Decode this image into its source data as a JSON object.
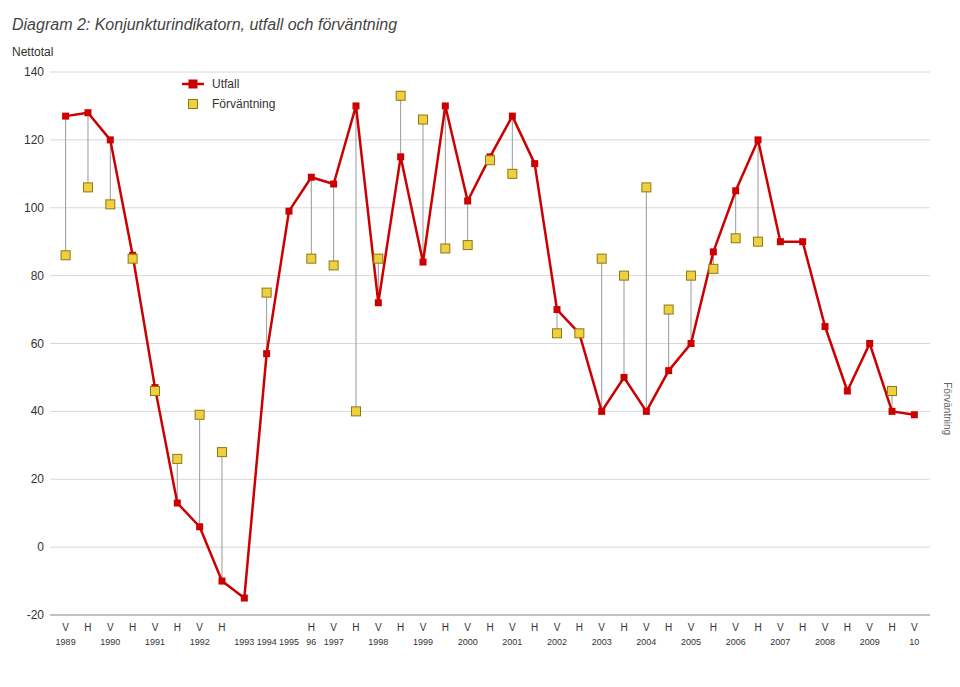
{
  "chart_data": {
    "type": "line",
    "title": "Diagram 2: Konjunkturindikatorn, utfall och förväntning",
    "y_label": "Nettotal",
    "annotations": [
      {
        "text": "Förväntning"
      }
    ],
    "categories": [
      "V",
      "H",
      "V",
      "H",
      "V",
      "H",
      "V",
      "H",
      null,
      null,
      null,
      "H",
      "V",
      "H",
      "V",
      "H",
      "V",
      "H",
      "V",
      "H",
      "V",
      "H",
      "V",
      "H",
      "V",
      "H",
      "V",
      "H",
      "V",
      "H",
      "V",
      "H",
      "V",
      "H",
      "V",
      "H",
      "V",
      "H",
      "V"
    ],
    "category_groups": [
      "1989",
      null,
      "1990",
      null,
      "1991",
      null,
      "1992",
      null,
      "1993",
      "1994",
      "1995",
      "96",
      "1997",
      null,
      "1998",
      null,
      "1999",
      null,
      "2000",
      null,
      "2001",
      null,
      "2002",
      null,
      "2003",
      null,
      "2004",
      null,
      "2005",
      null,
      "2006",
      null,
      "2007",
      null,
      "2008",
      null,
      "2009",
      null,
      "10"
    ],
    "series": [
      {
        "name": "Utfall",
        "type": "line",
        "marker": "square",
        "color": "#cc0000",
        "values": [
          127,
          128,
          120,
          86,
          47,
          13,
          6,
          -10,
          -15,
          57,
          99,
          109,
          107,
          130,
          72,
          115,
          84,
          130,
          102,
          115,
          127,
          113,
          70,
          63,
          40,
          50,
          40,
          52,
          60,
          87,
          105,
          120,
          90,
          90,
          65,
          46,
          60,
          40,
          39
        ]
      },
      {
        "name": "Förväntning",
        "type": "scatter",
        "marker": "square",
        "color": "#f0d040",
        "values": [
          86,
          106,
          101,
          85,
          46,
          26,
          39,
          28,
          null,
          75,
          null,
          85,
          83,
          40,
          85,
          133,
          126,
          88,
          89,
          114,
          110,
          null,
          63,
          63,
          85,
          80,
          106,
          70,
          80,
          82,
          91,
          90,
          null,
          null,
          null,
          null,
          null,
          46,
          null
        ]
      }
    ],
    "ylim": [
      -20,
      140
    ],
    "yticks": [
      -20,
      0,
      20,
      40,
      60,
      80,
      100,
      120,
      140
    ],
    "grid": true,
    "legend": "upper left"
  }
}
